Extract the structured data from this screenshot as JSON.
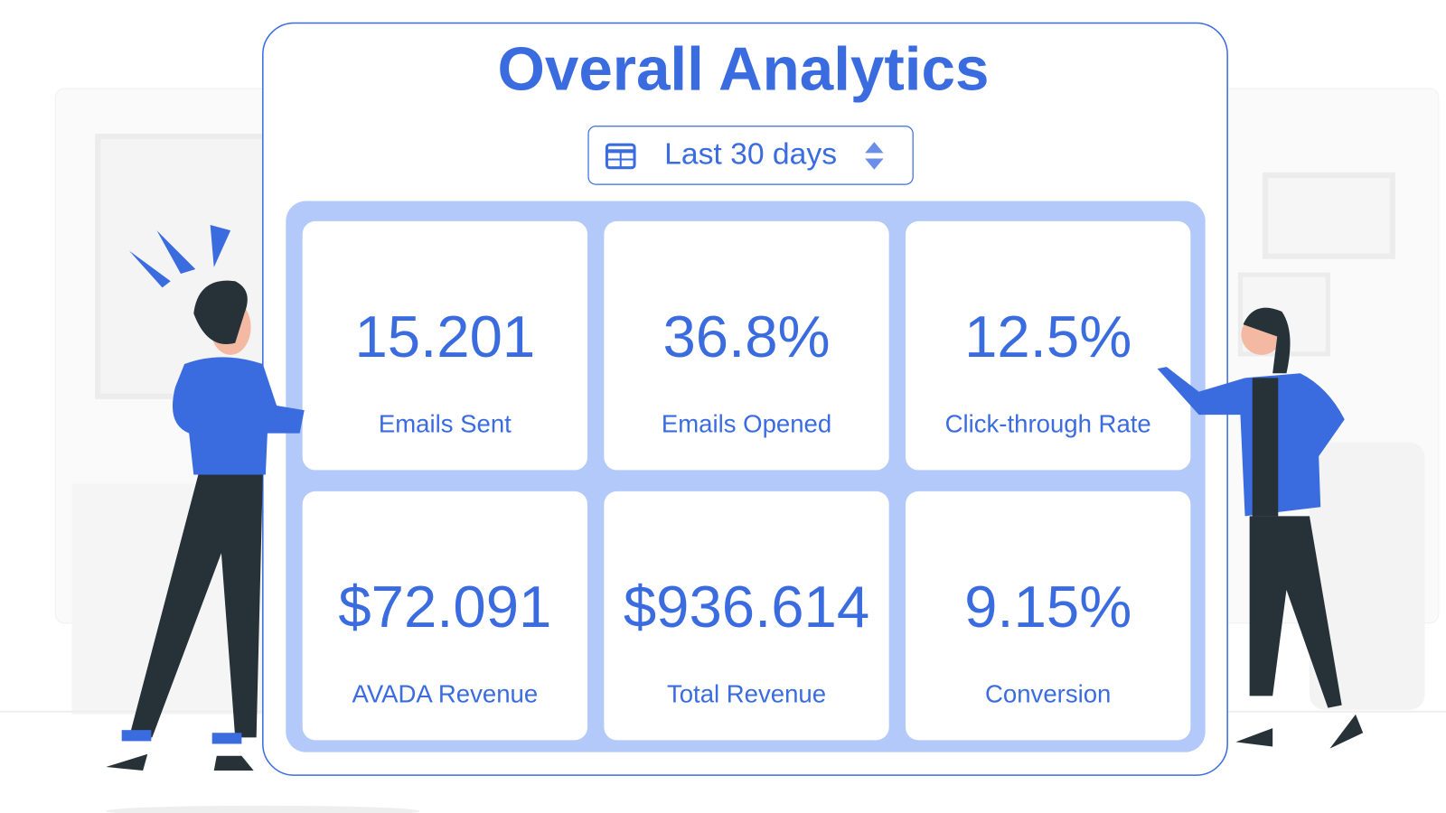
{
  "header": {
    "title": "Overall Analytics"
  },
  "date_range": {
    "label": "Last 30 days"
  },
  "stats": [
    {
      "value": "15.201",
      "label": "Emails Sent"
    },
    {
      "value": "36.8%",
      "label": "Emails Opened"
    },
    {
      "value": "12.5%",
      "label": "Click-through Rate"
    },
    {
      "value": "$72.091",
      "label": "AVADA Revenue"
    },
    {
      "value": "$936.614",
      "label": "Total Revenue"
    },
    {
      "value": "9.15%",
      "label": "Conversion"
    }
  ]
}
